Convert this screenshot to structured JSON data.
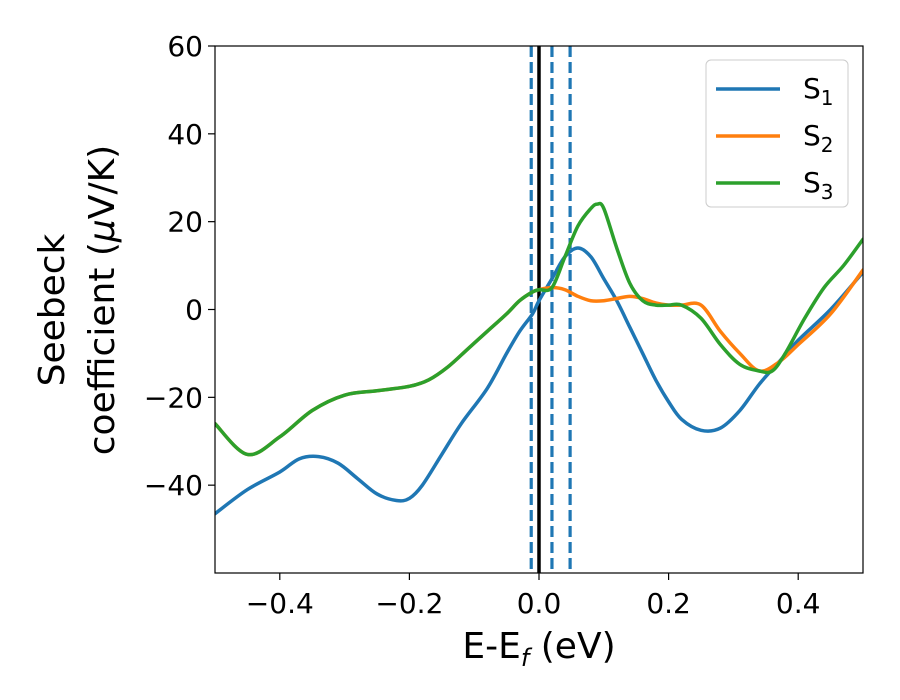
{
  "chart_data": {
    "type": "line",
    "xlabel": {
      "main": "E-E",
      "sub": "f",
      "unit": " (eV)"
    },
    "ylabel": {
      "line1": "Seebeck",
      "line2_text": "coefficient  (",
      "line2_mu": "μ",
      "line2_unit": "V/K)"
    },
    "xlim": [
      -0.5,
      0.5
    ],
    "ylim": [
      -60,
      60
    ],
    "xticks": [
      -0.4,
      -0.2,
      0.0,
      0.2,
      0.4
    ],
    "xtick_labels": [
      "−0.4",
      "−0.2",
      "0.0",
      "0.2",
      "0.4"
    ],
    "yticks": [
      -40,
      -20,
      0,
      20,
      40,
      60
    ],
    "ytick_labels": [
      "−40",
      "−20",
      "0",
      "20",
      "40",
      "60"
    ],
    "grid": false,
    "legend_position": "top-right",
    "vlines": [
      {
        "x": -0.012,
        "style": "dashed",
        "color": "#1f77b4"
      },
      {
        "x": 0.0,
        "style": "solid",
        "color": "#000000"
      },
      {
        "x": 0.02,
        "style": "dashed",
        "color": "#1f77b4"
      },
      {
        "x": 0.048,
        "style": "dashed",
        "color": "#1f77b4"
      }
    ],
    "series": [
      {
        "name": "S",
        "sub": "1",
        "color": "#1f77b4",
        "x": [
          -0.5,
          -0.45,
          -0.4,
          -0.37,
          -0.34,
          -0.31,
          -0.28,
          -0.25,
          -0.22,
          -0.2,
          -0.18,
          -0.15,
          -0.12,
          -0.08,
          -0.05,
          -0.03,
          -0.01,
          0.0,
          0.02,
          0.04,
          0.06,
          0.08,
          0.1,
          0.12,
          0.14,
          0.16,
          0.18,
          0.2,
          0.22,
          0.25,
          0.28,
          0.31,
          0.34,
          0.37,
          0.4,
          0.45,
          0.5
        ],
        "y": [
          -46.5,
          -41,
          -37,
          -34,
          -33.5,
          -35,
          -38.5,
          -42,
          -43.5,
          -43,
          -40,
          -33,
          -26,
          -18,
          -10,
          -5,
          -1,
          2,
          7,
          12,
          14,
          12,
          7,
          2,
          -4,
          -10,
          -16,
          -21,
          -25,
          -27.5,
          -27,
          -23,
          -17,
          -12,
          -7,
          0,
          8.5
        ]
      },
      {
        "name": "S",
        "sub": "2",
        "color": "#ff7f0e",
        "x": [
          -0.5,
          -0.45,
          -0.4,
          -0.35,
          -0.3,
          -0.25,
          -0.2,
          -0.17,
          -0.14,
          -0.11,
          -0.08,
          -0.05,
          -0.03,
          -0.01,
          0.0,
          0.02,
          0.04,
          0.06,
          0.08,
          0.1,
          0.12,
          0.14,
          0.16,
          0.18,
          0.2,
          0.22,
          0.25,
          0.28,
          0.31,
          0.34,
          0.37,
          0.4,
          0.45,
          0.5
        ],
        "y": [
          -26,
          -33,
          -29,
          -23,
          -19.5,
          -18.5,
          -17.5,
          -16,
          -13,
          -9,
          -5,
          -1,
          2,
          4,
          4.5,
          5,
          4.5,
          3,
          2,
          2,
          2.5,
          3,
          2.5,
          1.5,
          1,
          1,
          1,
          -5,
          -10,
          -14,
          -12,
          -8,
          -1,
          9
        ]
      },
      {
        "name": "S",
        "sub": "3",
        "color": "#2ca02c",
        "x": [
          -0.5,
          -0.45,
          -0.4,
          -0.35,
          -0.3,
          -0.25,
          -0.2,
          -0.17,
          -0.14,
          -0.11,
          -0.08,
          -0.05,
          -0.03,
          -0.01,
          0.0,
          0.02,
          0.04,
          0.06,
          0.08,
          0.09,
          0.1,
          0.12,
          0.14,
          0.16,
          0.18,
          0.2,
          0.22,
          0.25,
          0.28,
          0.31,
          0.34,
          0.36,
          0.38,
          0.41,
          0.44,
          0.47,
          0.5
        ],
        "y": [
          -26,
          -33,
          -29,
          -23,
          -19.5,
          -18.5,
          -17.5,
          -16,
          -13,
          -9,
          -5,
          -1,
          2,
          4,
          4.5,
          5,
          12,
          19,
          23,
          24,
          23,
          14,
          6,
          2,
          1,
          1,
          1,
          -2,
          -8,
          -12.5,
          -14,
          -14,
          -10,
          -2,
          5,
          10,
          16
        ]
      }
    ]
  }
}
